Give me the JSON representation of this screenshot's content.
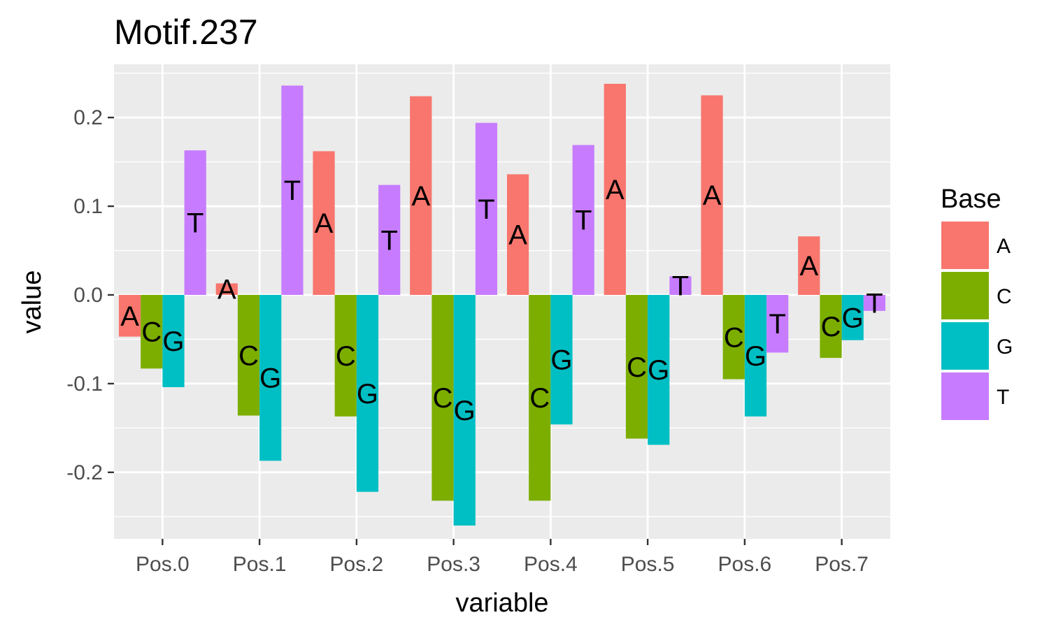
{
  "chart_data": {
    "type": "bar",
    "title": "Motif.237",
    "xlabel": "variable",
    "ylabel": "value",
    "categories": [
      "Pos.0",
      "Pos.1",
      "Pos.2",
      "Pos.3",
      "Pos.4",
      "Pos.5",
      "Pos.6",
      "Pos.7"
    ],
    "ylim": [
      -0.275,
      0.26
    ],
    "yticks": [
      -0.2,
      -0.1,
      0.0,
      0.1,
      0.2
    ],
    "ytick_labels": [
      "-0.2",
      "-0.1",
      "0.0",
      "0.1",
      "0.2"
    ],
    "grid": true,
    "legend": {
      "title": "Base",
      "position": "right"
    },
    "series": [
      {
        "name": "A",
        "color": "#F8766D",
        "values": [
          -0.047,
          0.013,
          0.162,
          0.224,
          0.136,
          0.238,
          0.225,
          0.066
        ]
      },
      {
        "name": "C",
        "color": "#7CAE00",
        "values": [
          -0.083,
          -0.136,
          -0.137,
          -0.232,
          -0.232,
          -0.162,
          -0.095,
          -0.071
        ]
      },
      {
        "name": "G",
        "color": "#00BFC4",
        "values": [
          -0.104,
          -0.187,
          -0.222,
          -0.26,
          -0.146,
          -0.169,
          -0.137,
          -0.051
        ]
      },
      {
        "name": "T",
        "color": "#C77CFF",
        "values": [
          0.163,
          0.236,
          0.124,
          0.194,
          0.169,
          0.021,
          -0.065,
          -0.018
        ]
      }
    ]
  }
}
